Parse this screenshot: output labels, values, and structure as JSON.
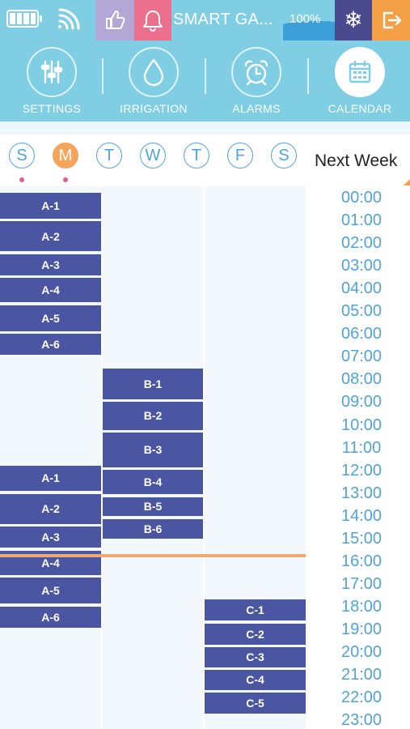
{
  "status_bar": {
    "title": "SMART GA...",
    "water_level": "100%",
    "battery_icon": "battery-full-icon",
    "wifi_icon": "wifi-icon",
    "like_icon": "thumbs-up-icon",
    "bell_icon": "bell-icon",
    "snow_icon": "snowflake-icon",
    "exit_icon": "logout-icon",
    "colors": {
      "bar": "#7fcee3",
      "like": "#b3a7d6",
      "bell": "#ec6f8e",
      "wave": "#3d9fd8",
      "snow": "#4b4a8f",
      "exit": "#f4a046"
    }
  },
  "nav": {
    "items": [
      {
        "label": "SETTINGS",
        "icon": "sliders-icon",
        "active": false
      },
      {
        "label": "IRRIGATION",
        "icon": "water-drop-icon",
        "active": false
      },
      {
        "label": "ALARMS",
        "icon": "alarm-clock-icon",
        "active": false
      },
      {
        "label": "CALENDAR",
        "icon": "calendar-icon",
        "active": true
      }
    ]
  },
  "week": {
    "days": [
      {
        "label": "S",
        "active": false,
        "dot": true
      },
      {
        "label": "M",
        "active": true,
        "dot": true
      },
      {
        "label": "T",
        "active": false,
        "dot": false
      },
      {
        "label": "W",
        "active": false,
        "dot": false
      },
      {
        "label": "T",
        "active": false,
        "dot": false
      },
      {
        "label": "F",
        "active": false,
        "dot": false
      },
      {
        "label": "S",
        "active": false,
        "dot": false
      }
    ],
    "next_week_label": "Next Week"
  },
  "schedule": {
    "hours": [
      "00:00",
      "01:00",
      "02:00",
      "03:00",
      "04:00",
      "05:00",
      "06:00",
      "07:00",
      "08:00",
      "09:00",
      "10:00",
      "11:00",
      "12:00",
      "13:00",
      "14:00",
      "15:00",
      "16:00",
      "17:00",
      "18:00",
      "19:00",
      "20:00",
      "21:00",
      "22:00",
      "23:00"
    ],
    "current_time_hour": 15.9,
    "columns": [
      {
        "name": "A",
        "blocks": [
          {
            "label": "A-1",
            "start": 0.0,
            "end": 1.2
          },
          {
            "label": "A-2",
            "start": 1.25,
            "end": 2.65
          },
          {
            "label": "A-3",
            "start": 2.7,
            "end": 3.7
          },
          {
            "label": "A-4",
            "start": 3.75,
            "end": 4.9
          },
          {
            "label": "A-5",
            "start": 4.95,
            "end": 6.15
          },
          {
            "label": "A-6",
            "start": 6.2,
            "end": 7.2
          },
          {
            "label": "A-1",
            "start": 12.0,
            "end": 13.2
          },
          {
            "label": "A-2",
            "start": 13.25,
            "end": 14.65
          },
          {
            "label": "A-3",
            "start": 14.7,
            "end": 15.7
          },
          {
            "label": "A-4",
            "start": 15.75,
            "end": 16.9
          },
          {
            "label": "A-5",
            "start": 16.95,
            "end": 18.15
          },
          {
            "label": "A-6",
            "start": 18.2,
            "end": 19.2
          }
        ]
      },
      {
        "name": "B",
        "blocks": [
          {
            "label": "B-1",
            "start": 7.75,
            "end": 9.15
          },
          {
            "label": "B-2",
            "start": 9.2,
            "end": 10.5
          },
          {
            "label": "B-3",
            "start": 10.55,
            "end": 12.15
          },
          {
            "label": "B-4",
            "start": 12.2,
            "end": 13.35
          },
          {
            "label": "B-5",
            "start": 13.4,
            "end": 14.3
          },
          {
            "label": "B-6",
            "start": 14.35,
            "end": 15.3
          }
        ]
      },
      {
        "name": "C",
        "blocks": [
          {
            "label": "C-1",
            "start": 17.9,
            "end": 18.9
          },
          {
            "label": "C-2",
            "start": 18.95,
            "end": 19.95
          },
          {
            "label": "C-3",
            "start": 20.0,
            "end": 20.95
          },
          {
            "label": "C-4",
            "start": 21.0,
            "end": 21.95
          },
          {
            "label": "C-5",
            "start": 22.0,
            "end": 23.0
          }
        ]
      }
    ]
  }
}
